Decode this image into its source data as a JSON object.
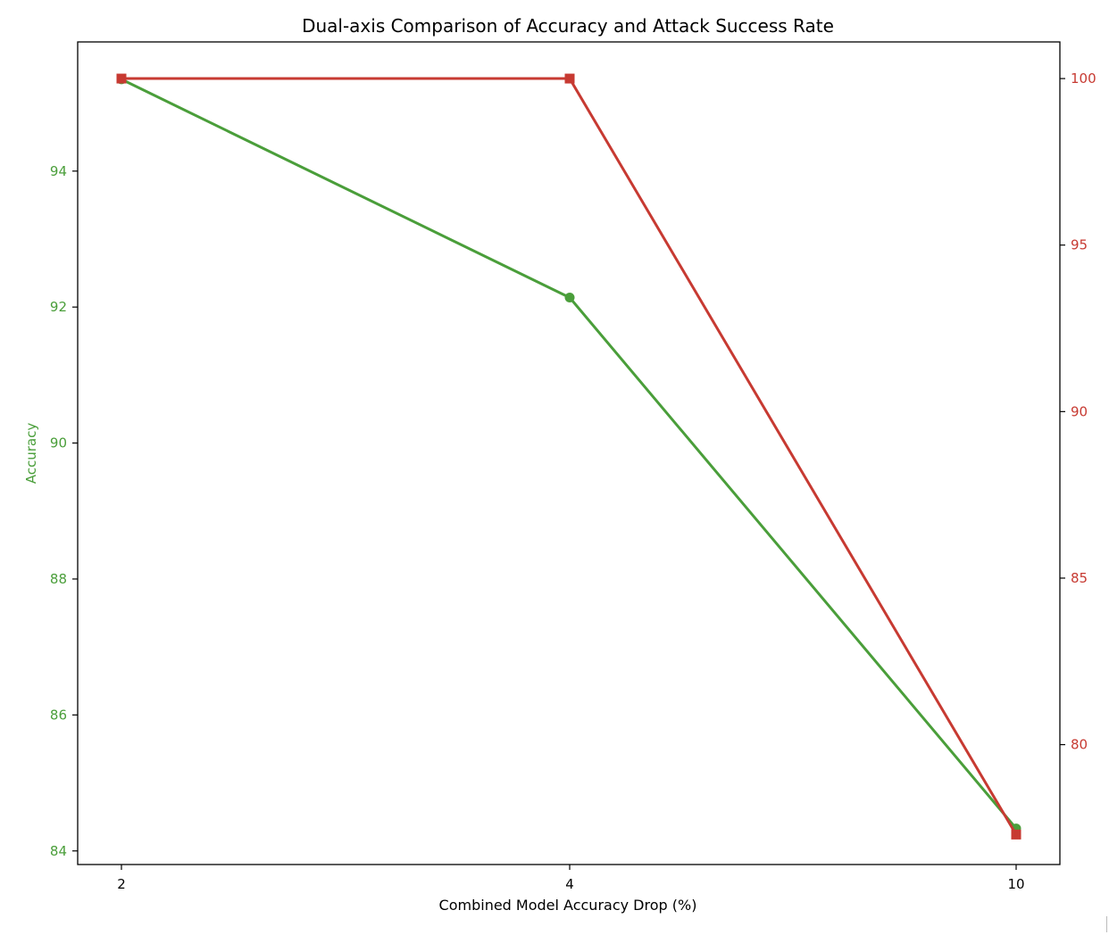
{
  "chart_data": {
    "type": "line",
    "title": "Dual-axis Comparison of Accuracy and Attack Success Rate",
    "xlabel": "Combined Model Accuracy Drop (%)",
    "x_ticks": [
      "2",
      "4",
      "10"
    ],
    "y_left": {
      "label": "Accuracy",
      "color": "#4a9e3a",
      "range": [
        83.8,
        95.9
      ],
      "ticks": [
        84,
        86,
        88,
        90,
        92,
        94
      ]
    },
    "y_right": {
      "label": "",
      "color": "#c73a32",
      "range": [
        76.4,
        101.1
      ],
      "ticks": [
        80,
        85,
        90,
        95,
        100
      ]
    },
    "series": [
      {
        "axis": "left",
        "marker": "circle",
        "color": "#4a9e3a",
        "values": [
          95.35,
          92.14,
          84.33
        ]
      },
      {
        "axis": "right",
        "marker": "square",
        "color": "#c73a32",
        "values": [
          100.0,
          100.0,
          77.3
        ]
      }
    ],
    "grid": false,
    "legend": "none"
  }
}
